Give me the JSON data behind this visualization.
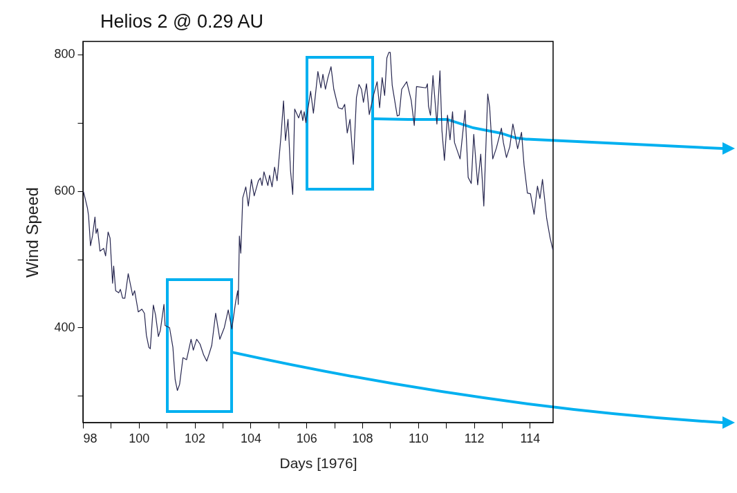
{
  "chart_data": {
    "type": "line",
    "title": "Helios 2 @ 0.29 AU",
    "xlabel": "Days [1976]",
    "ylabel": "Wind Speed",
    "xlim": [
      98,
      114.83
    ],
    "ylim": [
      261,
      819
    ],
    "xticks": [
      98,
      {
        "value": 99,
        "label": null
      },
      100,
      {
        "value": 101,
        "label": null
      },
      102,
      {
        "value": 103,
        "label": null
      },
      104,
      {
        "value": 105,
        "label": null
      },
      106,
      {
        "value": 107,
        "label": null
      },
      108,
      {
        "value": 109,
        "label": null
      },
      110,
      {
        "value": 111,
        "label": null
      },
      112,
      {
        "value": 113,
        "label": null
      },
      114
    ],
    "yticks": [
      {
        "value": 300,
        "label": null
      },
      400,
      {
        "value": 500,
        "label": null
      },
      600,
      {
        "value": 700,
        "label": null
      },
      800
    ],
    "grid": false,
    "line_style": "solid",
    "marker": "none",
    "series": [
      {
        "color": "#26264f",
        "x": [
          98.02,
          98.16,
          98.2,
          98.27,
          98.34,
          98.43,
          98.47,
          98.52,
          98.61,
          98.74,
          98.81,
          98.9,
          98.97,
          99.06,
          99.1,
          99.17,
          99.28,
          99.34,
          99.42,
          99.5,
          99.62,
          99.78,
          99.85,
          99.98,
          100.11,
          100.2,
          100.27,
          100.36,
          100.41,
          100.52,
          100.6,
          100.7,
          100.77,
          100.9,
          100.94,
          101.1,
          101.22,
          101.3,
          101.38,
          101.46,
          101.58,
          101.71,
          101.87,
          101.95,
          102.07,
          102.19,
          102.32,
          102.43,
          102.52,
          102.61,
          102.75,
          102.9,
          103.06,
          103.2,
          103.33,
          103.47,
          103.54,
          103.56,
          103.6,
          103.65,
          103.72,
          103.83,
          103.92,
          104.03,
          104.13,
          104.28,
          104.35,
          104.41,
          104.48,
          104.62,
          104.68,
          104.77,
          104.86,
          104.95,
          105.09,
          105.18,
          105.25,
          105.34,
          105.43,
          105.51,
          105.58,
          105.72,
          105.81,
          105.87,
          105.92,
          105.98,
          106.06,
          106.15,
          106.25,
          106.32,
          106.41,
          106.52,
          106.59,
          106.68,
          106.77,
          106.88,
          106.98,
          107.14,
          107.28,
          107.37,
          107.46,
          107.56,
          107.68,
          107.79,
          107.88,
          107.97,
          108.04,
          108.15,
          108.25,
          108.4,
          108.53,
          108.62,
          108.71,
          108.8,
          108.88,
          108.95,
          109.0,
          109.07,
          109.25,
          109.32,
          109.41,
          109.59,
          109.75,
          109.86,
          109.94,
          110.28,
          110.33,
          110.37,
          110.44,
          110.53,
          110.67,
          110.78,
          110.85,
          110.94,
          111.05,
          111.14,
          111.23,
          111.3,
          111.5,
          111.68,
          111.79,
          111.9,
          111.99,
          112.13,
          112.24,
          112.35,
          112.49,
          112.56,
          112.67,
          112.8,
          112.98,
          113.05,
          113.16,
          113.28,
          113.39,
          113.46,
          113.56,
          113.7,
          113.79,
          113.91,
          114.02,
          114.15,
          114.27,
          114.36,
          114.45,
          114.6,
          114.72,
          114.82
        ],
        "values": [
          599,
          575,
          564,
          520,
          534,
          562,
          538,
          545,
          512,
          516,
          505,
          540,
          531,
          465,
          490,
          454,
          451,
          456,
          443,
          443,
          479,
          447,
          454,
          423,
          427,
          421,
          389,
          371,
          369,
          433,
          418,
          387,
          396,
          434,
          403,
          400,
          371,
          324,
          308,
          317,
          356,
          353,
          383,
          367,
          383,
          376,
          360,
          351,
          362,
          374,
          421,
          383,
          400,
          426,
          398,
          439,
          454,
          434,
          534,
          509,
          590,
          606,
          578,
          617,
          593,
          615,
          619,
          608,
          628,
          608,
          623,
          606,
          635,
          615,
          681,
          732,
          674,
          705,
          630,
          595,
          720,
          707,
          718,
          703,
          716,
          700,
          722,
          746,
          714,
          740,
          775,
          751,
          771,
          749,
          766,
          782,
          749,
          722,
          720,
          727,
          685,
          705,
          639,
          737,
          756,
          749,
          730,
          757,
          712,
          740,
          760,
          722,
          766,
          740,
          795,
          803,
          803,
          755,
          710,
          711,
          749,
          760,
          733,
          696,
          753,
          751,
          757,
          724,
          711,
          769,
          698,
          776,
          689,
          645,
          711,
          675,
          716,
          671,
          647,
          718,
          620,
          611,
          683,
          609,
          654,
          578,
          742,
          722,
          647,
          663,
          692,
          671,
          649,
          665,
          698,
          684,
          662,
          686,
          638,
          597,
          596,
          566,
          607,
          589,
          617,
          560,
          532,
          514
        ]
      }
    ]
  }
}
